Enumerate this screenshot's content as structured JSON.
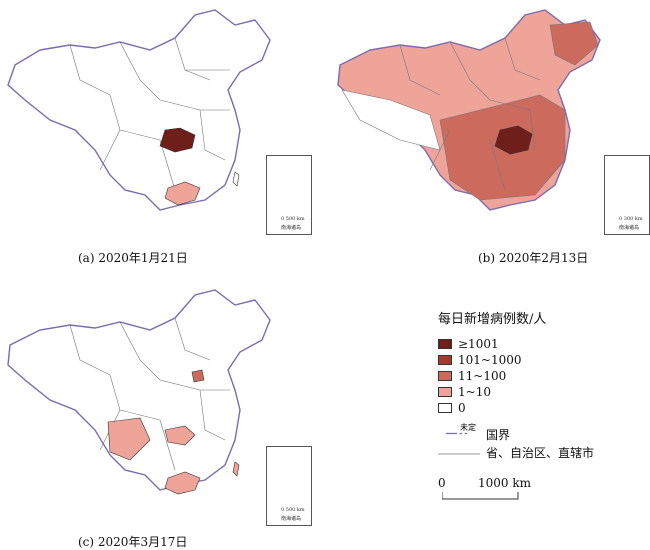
{
  "panels": [
    {
      "id": "a",
      "caption": "(a) 2020年1月21日"
    },
    {
      "id": "b",
      "caption": "(b) 2020年2月13日"
    },
    {
      "id": "c",
      "caption": "(c) 2020年3月17日"
    }
  ],
  "inset": {
    "label": "南海诸岛",
    "scale_a": "0 500 km",
    "scale_b": "0 300 km",
    "scale_c": "0 500 km"
  },
  "legend": {
    "title": "每日新增病例数/人",
    "classes": [
      {
        "label": "≥1001",
        "color": "#6e1f1a"
      },
      {
        "label": "101~1000",
        "color": "#a63a2e"
      },
      {
        "label": "11~100",
        "color": "#cc6a5e"
      },
      {
        "label": "1~10",
        "color": "#efa49a"
      },
      {
        "label": "0",
        "color": "#ffffff"
      }
    ],
    "boundary_national_note": "未定",
    "boundary_national": "国界",
    "boundary_province": "省、自治区、直辖市",
    "scale_zero": "0",
    "scale_text": "1000 km"
  },
  "colors": {
    "national_border": "#7b6bb0",
    "province_border": "#777777",
    "outline": "#333333"
  }
}
